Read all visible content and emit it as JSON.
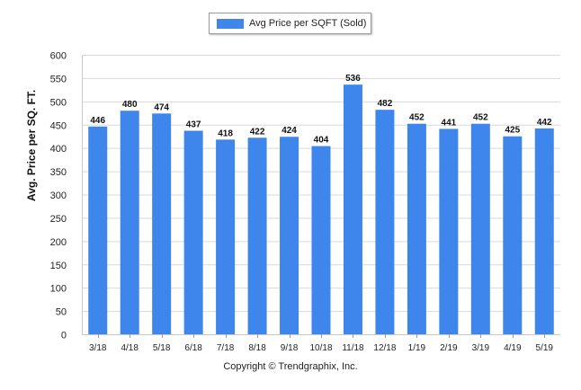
{
  "chart_data": {
    "type": "bar",
    "legend": {
      "label": "Avg Price per SQFT (Sold)",
      "placement": "top-center"
    },
    "ylabel": "Avg. Price per SQ. FT.",
    "xlabel": "",
    "ylim": [
      0,
      600
    ],
    "yticks": [
      0,
      50,
      100,
      150,
      200,
      250,
      300,
      350,
      400,
      450,
      500,
      550,
      600
    ],
    "grid": true,
    "categories": [
      "3/18",
      "4/18",
      "5/18",
      "6/18",
      "7/18",
      "8/18",
      "9/18",
      "10/18",
      "11/18",
      "12/18",
      "1/19",
      "2/19",
      "3/19",
      "4/19",
      "5/19"
    ],
    "series": [
      {
        "name": "Avg Price per SQFT (Sold)",
        "values": [
          446,
          480,
          474,
          437,
          418,
          422,
          424,
          404,
          536,
          482,
          452,
          441,
          452,
          425,
          442
        ]
      }
    ],
    "bar_color": "#3f86ec",
    "footer": "Copyright © Trendgraphix, Inc."
  }
}
